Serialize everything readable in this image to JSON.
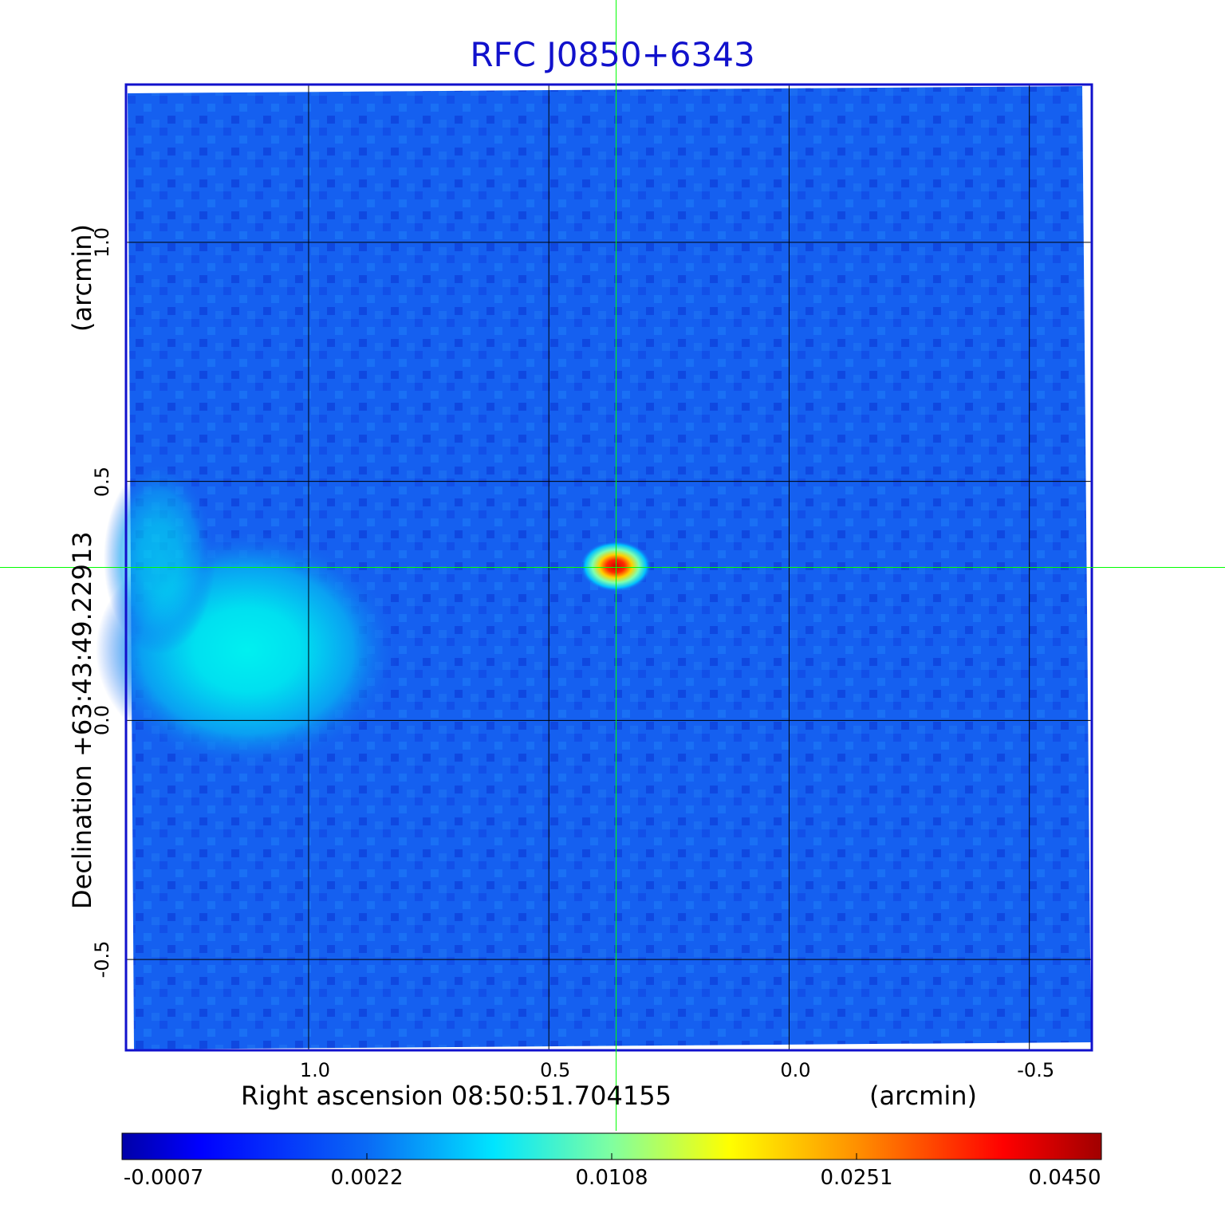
{
  "chart_data": {
    "type": "heatmap",
    "title": "RFC J0850+6343",
    "xlabel": "Right ascension  08:50:51.704155",
    "xlabel_unit": "(arcmin)",
    "ylabel": "Declination  +63:43:49.22913",
    "ylabel_unit": "(arcmin)",
    "x_ticks": [
      1.0,
      0.5,
      0.0,
      -0.5
    ],
    "x_tick_labels": [
      "1.0",
      "0.5",
      "0.0",
      "-0.5"
    ],
    "y_ticks": [
      1.0,
      0.5,
      0.0,
      -0.5
    ],
    "y_tick_labels": [
      "1.0",
      "0.5",
      "0.0",
      "-0.5"
    ],
    "xlim": [
      1.38,
      -0.63
    ],
    "ylim": [
      -0.69,
      1.33
    ],
    "grid": true,
    "crosshair": {
      "x": 0.36,
      "y": 0.32
    },
    "sources": [
      {
        "label": "compact source",
        "x": 0.36,
        "y": 0.32,
        "peak": 0.045
      },
      {
        "label": "extended emission",
        "x": 1.1,
        "y": 0.15,
        "peak": 0.003
      }
    ],
    "colorbar": {
      "tick_labels": [
        "-0.0007",
        "0.0022",
        "0.0108",
        "0.0251",
        "0.0450"
      ],
      "colors": [
        "#0000a8",
        "#0030ff",
        "#00e5ff",
        "#ffff00",
        "#ff0000",
        "#a00000"
      ]
    }
  }
}
